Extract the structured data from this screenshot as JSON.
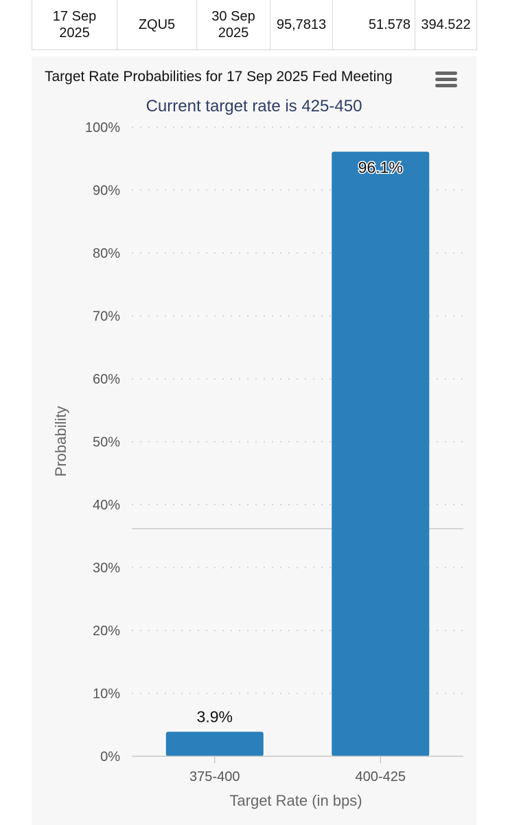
{
  "table": {
    "row": {
      "meeting_date": "17 Sep 2025",
      "contract": "ZQU5",
      "expires": "30 Sep 2025",
      "mid_price": "95,7813",
      "prior_volume": "51.578",
      "prior_oi": "394.522"
    }
  },
  "chart_data": {
    "type": "bar",
    "title": "Target Rate Probabilities for 17 Sep 2025 Fed Meeting",
    "subtitle": "Current target rate is 425-450",
    "xlabel": "Target Rate (in bps)",
    "ylabel": "Probability",
    "categories": [
      "375-400",
      "400-425"
    ],
    "values": [
      3.9,
      96.1
    ],
    "data_labels": [
      "3.9%",
      "96.1%"
    ],
    "ylim": [
      0,
      100
    ],
    "yticks": [
      "0%",
      "10%",
      "20%",
      "30%",
      "40%",
      "50%",
      "60%",
      "70%",
      "80%",
      "90%",
      "100%"
    ],
    "bar_color": "#2b7fbb",
    "grid": true
  }
}
